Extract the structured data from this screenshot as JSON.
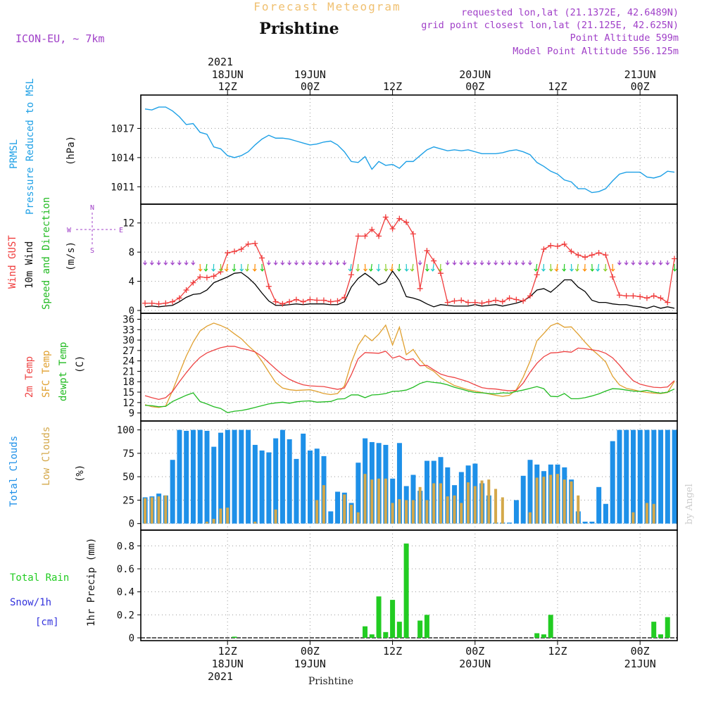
{
  "header": {
    "title": "Forecast Meteogram",
    "location": "Prishtine",
    "model": "ICON-EU, ~ 7km",
    "requested": "requested lon,lat (21.1372E, 42.6489N)",
    "gridpoint": "grid point closest lon,lat (21.125E, 42.625N)",
    "altitude": "Point Altitude 599m",
    "model_altitude": "Model Point Altitude 556.125m",
    "year": "2021",
    "bottom_label": "Prishtine",
    "watermark": "by Angel"
  },
  "colors": {
    "pressure": "#1ea0e6",
    "gust": "#f03c3c",
    "wind": "#000000",
    "t2m": "#ee4444",
    "sfc": "#e0a030",
    "dew": "#22bb22",
    "total_clouds": "#1e90e8",
    "low_clouds": "#d4a84a",
    "rain": "#22cc22",
    "snow": "#3333dd",
    "purple": "#a040c8",
    "title": "#f0c070"
  },
  "time_axis": {
    "top_labels": [
      {
        "t": 12,
        "line1": "18JUN",
        "line2": "12Z"
      },
      {
        "t": 24,
        "line1": "19JUN",
        "line2": "00Z"
      },
      {
        "t": 36,
        "line1": "",
        "line2": "12Z"
      },
      {
        "t": 48,
        "line1": "20JUN",
        "line2": "00Z"
      },
      {
        "t": 60,
        "line1": "",
        "line2": "12Z"
      },
      {
        "t": 72,
        "line1": "21JUN",
        "line2": "00Z"
      }
    ],
    "bottom_labels": [
      {
        "t": 12,
        "line1": "12Z",
        "line2": "18JUN"
      },
      {
        "t": 24,
        "line1": "00Z",
        "line2": "19JUN"
      },
      {
        "t": 36,
        "line1": "12Z",
        "line2": ""
      },
      {
        "t": 48,
        "line1": "00Z",
        "line2": "20JUN"
      },
      {
        "t": 60,
        "line1": "12Z",
        "line2": ""
      },
      {
        "t": 72,
        "line1": "00Z",
        "line2": "21JUN"
      }
    ],
    "start": 0,
    "end": 77
  },
  "panel_labels": {
    "pressure": [
      "PRMSL",
      "Pressure Reduced to MSL",
      "(hPa)"
    ],
    "wind": [
      "Wind GUST",
      "10m Wind",
      "Speed and Direction",
      "(m/s)"
    ],
    "compass": {
      "n": "N",
      "s": "S",
      "w": "W",
      "e": "E"
    },
    "temp": [
      "2m Temp",
      "SFC Temp",
      "dewpt Temp",
      "(C)"
    ],
    "clouds": [
      "Total Clouds",
      "Low Clouds",
      "(%)"
    ],
    "precip": [
      "Total Rain",
      "Snow/1h",
      "[cm]",
      "1hr Precip (mm)"
    ]
  },
  "chart_data": [
    {
      "type": "line",
      "name_key": "pressure",
      "ylim": [
        1009.5,
        1020
      ],
      "yticks": [
        1011,
        1014,
        1017
      ],
      "x": [
        0,
        1,
        2,
        3,
        4,
        5,
        6,
        7,
        8,
        9,
        10,
        11,
        12,
        13,
        14,
        15,
        16,
        17,
        18,
        19,
        20,
        21,
        22,
        23,
        24,
        25,
        26,
        27,
        28,
        29,
        30,
        31,
        32,
        33,
        34,
        35,
        36,
        37,
        38,
        39,
        40,
        41,
        42,
        43,
        44,
        45,
        46,
        47,
        48,
        49,
        50,
        51,
        52,
        53,
        54,
        55,
        56,
        57,
        58,
        59,
        60,
        61,
        62,
        63,
        64,
        65,
        66,
        67,
        68,
        69,
        70,
        71,
        72,
        73,
        74,
        75,
        76,
        77
      ],
      "values": [
        1019,
        1018.9,
        1019.2,
        1019.2,
        1018.8,
        1018.2,
        1017.4,
        1017.5,
        1016.6,
        1016.4,
        1015.1,
        1014.9,
        1014.2,
        1014,
        1014.2,
        1014.6,
        1015.3,
        1015.9,
        1016.3,
        1016,
        1016,
        1015.9,
        1015.7,
        1015.5,
        1015.3,
        1015.4,
        1015.6,
        1015.7,
        1015.3,
        1014.6,
        1013.6,
        1013.5,
        1014.1,
        1012.8,
        1013.6,
        1013.2,
        1013.3,
        1012.9,
        1013.6,
        1013.6,
        1014.2,
        1014.8,
        1015.1,
        1014.9,
        1014.7,
        1014.8,
        1014.7,
        1014.8,
        1014.6,
        1014.4,
        1014.4,
        1014.4,
        1014.5,
        1014.7,
        1014.8,
        1014.6,
        1014.3,
        1013.5,
        1013.1,
        1012.6,
        1012.3,
        1011.7,
        1011.5,
        1010.8,
        1010.8,
        1010.4,
        1010.5,
        1010.8,
        1011.6,
        1012.3,
        1012.5,
        1012.5,
        1012.5,
        1012,
        1011.9,
        1012.1,
        1012.6,
        1012.5
      ]
    },
    {
      "type": "line",
      "name_key": "wind",
      "ylim": [
        0,
        14
      ],
      "yticks": [
        0,
        4,
        8,
        12
      ],
      "x": [
        0,
        1,
        2,
        3,
        4,
        5,
        6,
        7,
        8,
        9,
        10,
        11,
        12,
        13,
        14,
        15,
        16,
        17,
        18,
        19,
        20,
        21,
        22,
        23,
        24,
        25,
        26,
        27,
        28,
        29,
        30,
        31,
        32,
        33,
        34,
        35,
        36,
        37,
        38,
        39,
        40,
        41,
        42,
        43,
        44,
        45,
        46,
        47,
        48,
        49,
        50,
        51,
        52,
        53,
        54,
        55,
        56,
        57,
        58,
        59,
        60,
        61,
        62,
        63,
        64,
        65,
        66,
        67,
        68,
        69,
        70,
        71,
        72,
        73,
        74,
        75,
        76,
        77
      ],
      "gust": [
        1,
        1,
        0.9,
        1,
        1.2,
        1.7,
        2.8,
        3.8,
        4.6,
        4.5,
        4.7,
        5.3,
        7.9,
        8.1,
        8.4,
        9.1,
        9.2,
        7.2,
        3.3,
        1.2,
        0.9,
        1.2,
        1.5,
        1.2,
        1.5,
        1.4,
        1.4,
        1.2,
        1.3,
        1.8,
        4.9,
        10.2,
        10.2,
        11.1,
        10.2,
        12.8,
        11.2,
        12.6,
        12.1,
        10.5,
        3,
        8.2,
        6.8,
        5.1,
        1.1,
        1.3,
        1.4,
        1.1,
        1.1,
        1,
        1.2,
        1.4,
        1.2,
        1.7,
        1.5,
        1.3,
        2,
        4.9,
        8.4,
        8.9,
        8.8,
        9.1,
        8.1,
        7.6,
        7.3,
        7.6,
        7.9,
        7.6,
        4.6,
        2.1,
        2,
        2,
        1.9,
        1.7,
        2,
        1.7,
        1.1,
        7.1
      ],
      "wind": [
        0.5,
        0.6,
        0.5,
        0.6,
        0.7,
        1.2,
        1.8,
        2.2,
        2.3,
        2.8,
        3.8,
        4.2,
        4.6,
        5.1,
        5.2,
        4.5,
        3.6,
        2.4,
        1.3,
        0.7,
        0.7,
        0.8,
        0.9,
        0.8,
        0.9,
        0.9,
        0.9,
        0.8,
        0.8,
        1.2,
        3.2,
        4.4,
        5.1,
        4.4,
        3.5,
        3.9,
        5.4,
        4.1,
        1.9,
        1.7,
        1.4,
        0.9,
        0.5,
        0.8,
        0.7,
        0.6,
        0.6,
        0.6,
        0.8,
        0.6,
        0.7,
        0.8,
        0.6,
        0.8,
        1,
        1.3,
        1.9,
        2.8,
        3,
        2.5,
        3.3,
        4.2,
        4.2,
        3.2,
        2.6,
        1.4,
        1.1,
        1.1,
        0.9,
        0.8,
        0.8,
        0.6,
        0.5,
        0.3,
        0.6,
        0.3,
        0.5,
        0.3
      ]
    },
    {
      "type": "line",
      "name_key": "temp",
      "ylim": [
        7.5,
        36.5
      ],
      "yticks": [
        9,
        12,
        15,
        18,
        21,
        24,
        27,
        30,
        33,
        36
      ],
      "x": [
        0,
        1,
        2,
        3,
        4,
        5,
        6,
        7,
        8,
        9,
        10,
        11,
        12,
        13,
        14,
        15,
        16,
        17,
        18,
        19,
        20,
        21,
        22,
        23,
        24,
        25,
        26,
        27,
        28,
        29,
        30,
        31,
        32,
        33,
        34,
        35,
        36,
        37,
        38,
        39,
        40,
        41,
        42,
        43,
        44,
        45,
        46,
        47,
        48,
        49,
        50,
        51,
        52,
        53,
        54,
        55,
        56,
        57,
        58,
        59,
        60,
        61,
        62,
        63,
        64,
        65,
        66,
        67,
        68,
        69,
        70,
        71,
        72,
        73,
        74,
        75,
        76,
        77
      ],
      "t2m": [
        14,
        13.4,
        12.9,
        13.4,
        15.2,
        18,
        20.6,
        23,
        25,
        26.3,
        27.1,
        27.8,
        28.2,
        28.2,
        27.6,
        27.2,
        26.6,
        25.3,
        23.5,
        21.7,
        20,
        18.7,
        17.8,
        17.1,
        16.8,
        16.7,
        16.6,
        16.2,
        15.8,
        16.2,
        20,
        24.6,
        26.4,
        26.3,
        26.2,
        26.8,
        24.8,
        25.4,
        24.3,
        24.6,
        22.6,
        22.7,
        21.4,
        20.2,
        19.6,
        19.2,
        18.6,
        18,
        17.1,
        16.3,
        16,
        15.9,
        15.6,
        15.4,
        15.5,
        17.6,
        20.7,
        23.3,
        25.2,
        26.3,
        26.4,
        26.7,
        26.5,
        27.7,
        27.5,
        27.2,
        26.9,
        26.2,
        24.9,
        22.8,
        20.4,
        18.3,
        17.3,
        16.8,
        16.4,
        16.3,
        16.5,
        18.3
      ],
      "sfc": [
        11.4,
        10.8,
        10.6,
        11,
        15.4,
        20.5,
        25.4,
        29.4,
        32.6,
        34,
        34.9,
        34.2,
        33.3,
        31.8,
        30.4,
        28.4,
        26.6,
        23.9,
        20.8,
        17.8,
        16.2,
        15.7,
        15.5,
        15.6,
        15.7,
        15.2,
        14.6,
        14.3,
        14.6,
        16.8,
        23.5,
        28.5,
        31.4,
        29.8,
        31.7,
        34.3,
        28.6,
        33.7,
        25.8,
        27.3,
        24.3,
        22.1,
        21,
        19.2,
        18,
        16.9,
        16.3,
        15.7,
        15.3,
        14.9,
        14.5,
        14.1,
        13.8,
        14.1,
        15.7,
        19.3,
        23.9,
        29.8,
        31.9,
        34.1,
        34.9,
        33.7,
        33.8,
        31.7,
        29.4,
        27.3,
        25.6,
        23.7,
        19.6,
        17.1,
        16.1,
        15.7,
        15.2,
        14.9,
        14.7,
        14.6,
        14.9,
        18.1
      ],
      "dew": [
        11.2,
        11.1,
        10.8,
        10.9,
        12.3,
        13.2,
        14.1,
        14.8,
        12.3,
        11.6,
        10.8,
        10.3,
        9.1,
        9.5,
        9.7,
        10.1,
        10.6,
        11.1,
        11.6,
        11.9,
        12.1,
        11.8,
        12.2,
        12.4,
        12.5,
        12.1,
        12.2,
        12.3,
        13,
        13.1,
        14.2,
        14.2,
        13.4,
        14.2,
        14.3,
        14.6,
        15.2,
        15.3,
        15.6,
        16.4,
        17.5,
        18.1,
        17.8,
        17.6,
        17.1,
        16.4,
        15.9,
        15.3,
        14.9,
        14.8,
        14.6,
        14.5,
        14.8,
        14.7,
        15.2,
        15.6,
        16.1,
        16.6,
        16,
        13.8,
        13.7,
        14.6,
        13.1,
        13.1,
        13.4,
        13.9,
        14.5,
        15.3,
        16,
        15.9,
        15.6,
        15.3,
        15.2,
        15.5,
        15,
        14.7,
        15,
        15.9
      ]
    },
    {
      "type": "bar",
      "name_key": "clouds",
      "ylim": [
        -4,
        105
      ],
      "yticks": [
        0,
        25,
        50,
        75,
        100
      ],
      "x": [
        0,
        1,
        2,
        3,
        4,
        5,
        6,
        7,
        8,
        9,
        10,
        11,
        12,
        13,
        14,
        15,
        16,
        17,
        18,
        19,
        20,
        21,
        22,
        23,
        24,
        25,
        26,
        27,
        28,
        29,
        30,
        31,
        32,
        33,
        34,
        35,
        36,
        37,
        38,
        39,
        40,
        41,
        42,
        43,
        44,
        45,
        46,
        47,
        48,
        49,
        50,
        51,
        52,
        53,
        54,
        55,
        56,
        57,
        58,
        59,
        60,
        61,
        62,
        63,
        64,
        65,
        66,
        67,
        68,
        69,
        70,
        71,
        72,
        73,
        74,
        75,
        76,
        77
      ],
      "total": [
        28,
        29,
        32,
        30,
        68,
        100,
        99,
        100,
        100,
        99,
        82,
        97,
        100,
        100,
        100,
        100,
        84,
        78,
        76,
        91,
        100,
        90,
        69,
        96,
        78,
        80,
        72,
        13,
        34,
        33,
        22,
        65,
        91,
        87,
        86,
        84,
        48,
        86,
        40,
        52,
        35,
        67,
        67,
        71,
        60,
        41,
        55,
        62,
        64,
        43,
        30,
        1,
        1,
        1,
        25,
        51,
        68,
        63,
        56,
        63,
        63,
        60,
        47,
        13,
        2,
        2,
        39,
        21,
        88,
        100,
        100,
        100,
        100,
        100,
        100,
        100,
        100,
        100
      ],
      "low": [
        27,
        28,
        29,
        30,
        0,
        0,
        0,
        0,
        0,
        2,
        5,
        16,
        17,
        0,
        0,
        0,
        2,
        0,
        0,
        15,
        0,
        0,
        0,
        0,
        0,
        25,
        41,
        0,
        0,
        31,
        20,
        12,
        53,
        47,
        48,
        48,
        22,
        26,
        25,
        25,
        39,
        25,
        43,
        43,
        29,
        30,
        22,
        44,
        40,
        46,
        47,
        37,
        28,
        0,
        0,
        0,
        12,
        49,
        50,
        52,
        53,
        47,
        45,
        30,
        0,
        0,
        0,
        0,
        0,
        0,
        0,
        12,
        0,
        22,
        21,
        0,
        0,
        0
      ]
    },
    {
      "type": "bar",
      "name_key": "precip",
      "ylim": [
        0,
        0.9
      ],
      "yticks": [
        0,
        0.2,
        0.4,
        0.6,
        0.8
      ],
      "yticklabels": [
        "0",
        "0.2",
        "0.4",
        "0.6",
        "0.8"
      ],
      "x": [
        0,
        1,
        2,
        3,
        4,
        5,
        6,
        7,
        8,
        9,
        10,
        11,
        12,
        13,
        14,
        15,
        16,
        17,
        18,
        19,
        20,
        21,
        22,
        23,
        24,
        25,
        26,
        27,
        28,
        29,
        30,
        31,
        32,
        33,
        34,
        35,
        36,
        37,
        38,
        39,
        40,
        41,
        42,
        43,
        44,
        45,
        46,
        47,
        48,
        49,
        50,
        51,
        52,
        53,
        54,
        55,
        56,
        57,
        58,
        59,
        60,
        61,
        62,
        63,
        64,
        65,
        66,
        67,
        68,
        69,
        70,
        71,
        72,
        73,
        74,
        75,
        76,
        77
      ],
      "rain": [
        0,
        0,
        0,
        0,
        0,
        0,
        0,
        0,
        0,
        0,
        0,
        0,
        0,
        0.01,
        0,
        0,
        0,
        0,
        0,
        0,
        0,
        0,
        0,
        0,
        0,
        0,
        0,
        0,
        0,
        0,
        0,
        0,
        0.1,
        0.03,
        0.36,
        0.05,
        0.33,
        0.14,
        0.82,
        0,
        0.15,
        0.2,
        0,
        0,
        0,
        0,
        0,
        0,
        0,
        0,
        0,
        0,
        0,
        0,
        0,
        0,
        0,
        0.04,
        0.03,
        0.2,
        0,
        0,
        0,
        0,
        0,
        0,
        0,
        0,
        0,
        0,
        0,
        0,
        0,
        0,
        0.14,
        0.03,
        0.18,
        0
      ]
    }
  ]
}
